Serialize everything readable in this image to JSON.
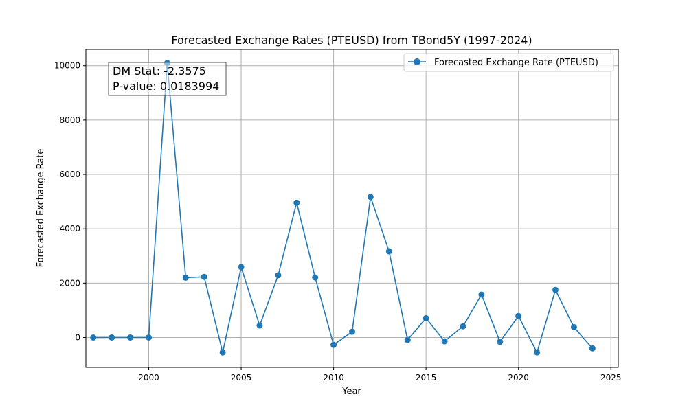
{
  "chart_data": {
    "type": "line",
    "title": "Forecasted Exchange Rates (PTEUSD) from TBond5Y (1997-2024)",
    "xlabel": "Year",
    "ylabel": "Forecasted Exchange Rate",
    "xlim": [
      1996.6,
      2025.4
    ],
    "ylim": [
      -1100,
      10600
    ],
    "xticks": [
      2000,
      2005,
      2010,
      2015,
      2020,
      2025
    ],
    "yticks": [
      0,
      2000,
      4000,
      6000,
      8000,
      10000
    ],
    "grid": true,
    "legend_position": "top-right",
    "series": [
      {
        "name": "Forecasted Exchange Rate (PTEUSD)",
        "color": "#1f77b4",
        "marker": "circle",
        "x": [
          1997,
          1998,
          1999,
          2000,
          2001,
          2002,
          2003,
          2004,
          2005,
          2006,
          2007,
          2008,
          2009,
          2010,
          2011,
          2012,
          2013,
          2014,
          2015,
          2016,
          2017,
          2018,
          2019,
          2020,
          2021,
          2022,
          2023,
          2024
        ],
        "y": [
          0,
          0,
          0,
          0,
          10100,
          2200,
          2230,
          -550,
          2590,
          440,
          2290,
          4960,
          2210,
          -270,
          210,
          5170,
          3170,
          -90,
          710,
          -140,
          410,
          1580,
          -160,
          790,
          -550,
          1750,
          380,
          -400
        ]
      }
    ],
    "annotations": [
      "DM Stat: -2.3575",
      "P-value: 0.0183994"
    ]
  }
}
